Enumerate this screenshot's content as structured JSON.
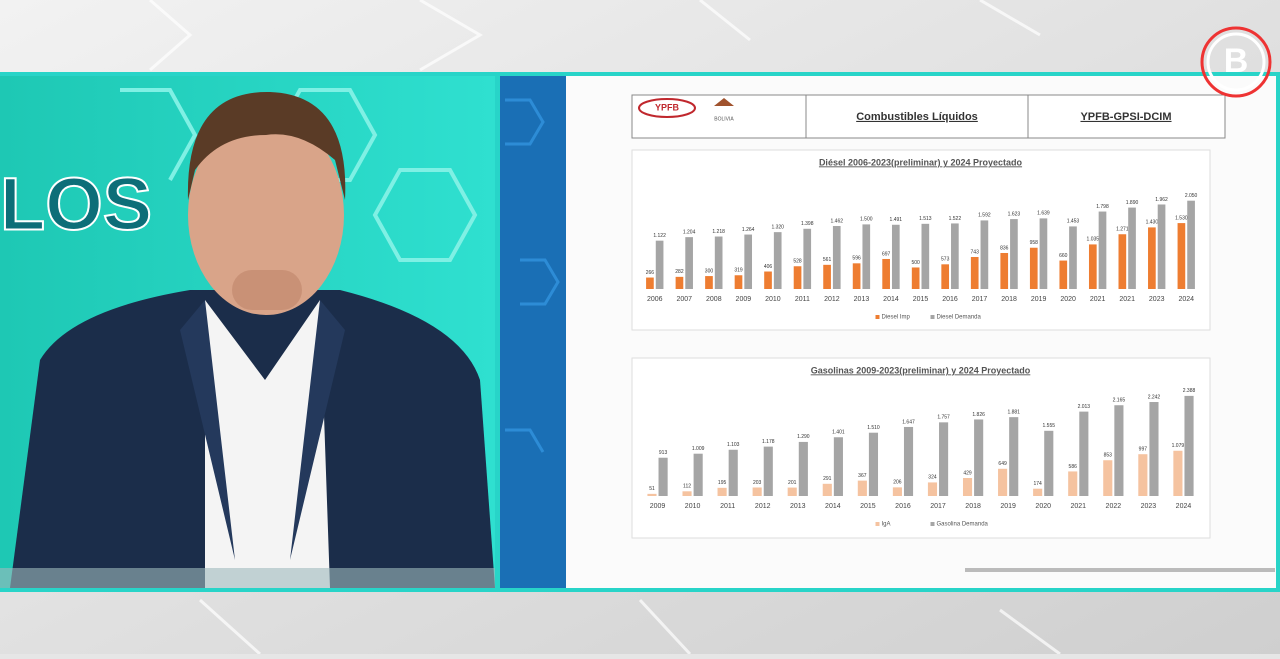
{
  "header": {
    "logo": "YPFB",
    "country": "BOLIVIA",
    "title": "Combustibles Líquidos",
    "source": "YPFB-GPSI-DCIM"
  },
  "studio": {
    "backdrop_text": "LOS",
    "channel_logo": "B"
  },
  "chart_data": [
    {
      "type": "bar",
      "title": "Diésel 2006-2023(preliminar) y 2024 Proyectado",
      "categories": [
        "2006",
        "2007",
        "2008",
        "2009",
        "2010",
        "2011",
        "2012",
        "2013",
        "2014",
        "2015",
        "2016",
        "2017",
        "2018",
        "2019",
        "2020",
        "2021",
        "2021",
        "2023",
        "2024"
      ],
      "series": [
        {
          "name": "Diesel Imp",
          "color": "#ee7d31",
          "values": [
            266,
            282,
            300,
            319,
            406,
            528,
            561,
            596,
            697,
            500,
            573,
            743,
            836,
            958,
            660,
            1035,
            1271,
            1430,
            1530
          ],
          "value_labels": [
            "266",
            "282",
            "300",
            "319",
            "406",
            "528",
            "561",
            "596",
            "697",
            "500",
            "573",
            "743",
            "836",
            "958",
            "660",
            "1.035",
            "1.271",
            "1.430",
            "1.530"
          ]
        },
        {
          "name": "Diesel Demanda",
          "color": "#a5a5a5",
          "values": [
            1122,
            1204,
            1218,
            1264,
            1320,
            1398,
            1462,
            1500,
            1491,
            1513,
            1522,
            1592,
            1623,
            1639,
            1453,
            1798,
            1890,
            1962,
            2050
          ],
          "value_labels": [
            "1.122",
            "1.204",
            "1.218",
            "1.264",
            "1.320",
            "1.398",
            "1.462",
            "1.500",
            "1.491",
            "1.513",
            "1.522",
            "1.592",
            "1.623",
            "1.639",
            "1.453",
            "1.798",
            "1.890",
            "1.962",
            "2.050"
          ]
        }
      ],
      "ylim": [
        0,
        2600
      ]
    },
    {
      "type": "bar",
      "title": "Gasolinas 2009-2023(preliminar) y 2024 Proyectado",
      "categories": [
        "2009",
        "2010",
        "2011",
        "2012",
        "2013",
        "2014",
        "2015",
        "2016",
        "2017",
        "2018",
        "2019",
        "2020",
        "2021",
        "2022",
        "2023",
        "2024"
      ],
      "series": [
        {
          "name": "IgA",
          "color": "#f5c3a0",
          "values": [
            51,
            112,
            195,
            203,
            201,
            291,
            367,
            206,
            324,
            429,
            649,
            174,
            586,
            853,
            997,
            1079
          ],
          "value_labels": [
            "51",
            "112",
            "195",
            "203",
            "201",
            "291",
            "367",
            "206",
            "324",
            "429",
            "649",
            "174",
            "586",
            "853",
            "997",
            "1.079"
          ]
        },
        {
          "name": "Gasolina Demanda",
          "color": "#a5a5a5",
          "values": [
            913,
            1009,
            1103,
            1178,
            1290,
            1401,
            1510,
            1647,
            1757,
            1826,
            1881,
            1555,
            2013,
            2165,
            2242,
            2388
          ],
          "value_labels": [
            "913",
            "1.009",
            "1.103",
            "1.178",
            "1.290",
            "1.401",
            "1.510",
            "1.647",
            "1.757",
            "1.826",
            "1.881",
            "1.555",
            "2.013",
            "2.165",
            "2.242",
            "2.388"
          ]
        }
      ],
      "ylim": [
        0,
        2600
      ]
    }
  ]
}
